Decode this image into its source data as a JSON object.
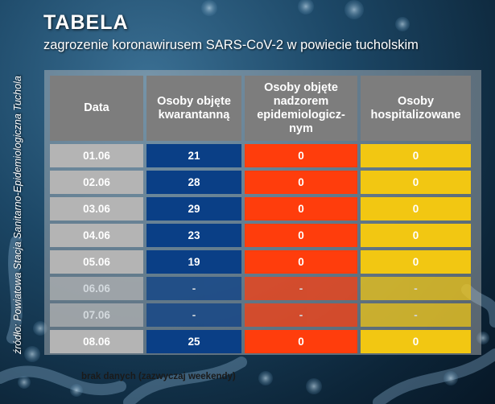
{
  "header": {
    "title": "TABELA",
    "subtitle": "zagrozenie koronawirusem SARS-CoV-2 w powiecie tucholskim"
  },
  "source": "źródło: Powiatowa Stacja Sanitarno-Epidemiologiczna Tuchola",
  "table": {
    "headers": {
      "date": "Data",
      "quarantine": "Osoby objęte kwarantanną",
      "supervision": "Osoby objęte nadzorem epidemiologicz-nym",
      "hospitalized": "Osoby hospitalizowane"
    },
    "rows": [
      {
        "date": "01.06",
        "quarantine": "21",
        "supervision": "0",
        "hospitalized": "0"
      },
      {
        "date": "02.06",
        "quarantine": "28",
        "supervision": "0",
        "hospitalized": "0"
      },
      {
        "date": "03.06",
        "quarantine": "29",
        "supervision": "0",
        "hospitalized": "0"
      },
      {
        "date": "04.06",
        "quarantine": "23",
        "supervision": "0",
        "hospitalized": "0"
      },
      {
        "date": "05.06",
        "quarantine": "19",
        "supervision": "0",
        "hospitalized": "0"
      },
      {
        "date": "06.06",
        "quarantine": "-",
        "supervision": "-",
        "hospitalized": "-"
      },
      {
        "date": "07.06",
        "quarantine": "-",
        "supervision": "-",
        "hospitalized": "-"
      },
      {
        "date": "08.06",
        "quarantine": "25",
        "supervision": "0",
        "hospitalized": "0"
      }
    ],
    "colors": {
      "header": "#7d7d7d",
      "date": "#b4b4b4",
      "quarantine": "#0a3f86",
      "supervision": "#ff3d0c",
      "hospitalized": "#f2c712"
    }
  },
  "note": "brak danych (zazwyczaj weekendy)"
}
